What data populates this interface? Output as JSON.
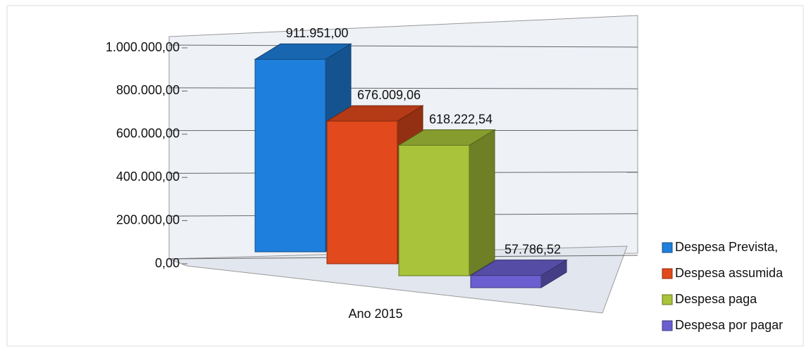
{
  "chart_data": {
    "type": "bar3d",
    "categories": [
      "Ano 2015"
    ],
    "series": [
      {
        "name": "Despesa Prevista,",
        "color": "#1f7fdc",
        "values": [
          911951.0
        ],
        "value_labels": [
          "911.951,00"
        ]
      },
      {
        "name": "Despesa assumida",
        "color": "#e2491c",
        "values": [
          676009.06
        ],
        "value_labels": [
          "676.009,06"
        ]
      },
      {
        "name": "Despesa paga",
        "color": "#a9c33a",
        "values": [
          618222.54
        ],
        "value_labels": [
          "618.222,54"
        ]
      },
      {
        "name": "Despesa por pagar",
        "color": "#6a5fd0",
        "values": [
          57786.52
        ],
        "value_labels": [
          "57.786,52"
        ]
      }
    ],
    "ylim": [
      0,
      1000000
    ],
    "yticks": [
      {
        "value": 0,
        "label": "0,00"
      },
      {
        "value": 200000,
        "label": "200.000,00"
      },
      {
        "value": 400000,
        "label": "400.000,00"
      },
      {
        "value": 600000,
        "label": "600.000,00"
      },
      {
        "value": 800000,
        "label": "800.000,00"
      },
      {
        "value": 1000000,
        "label": "1.000.000,00"
      }
    ],
    "grid": true,
    "legend": "right"
  }
}
